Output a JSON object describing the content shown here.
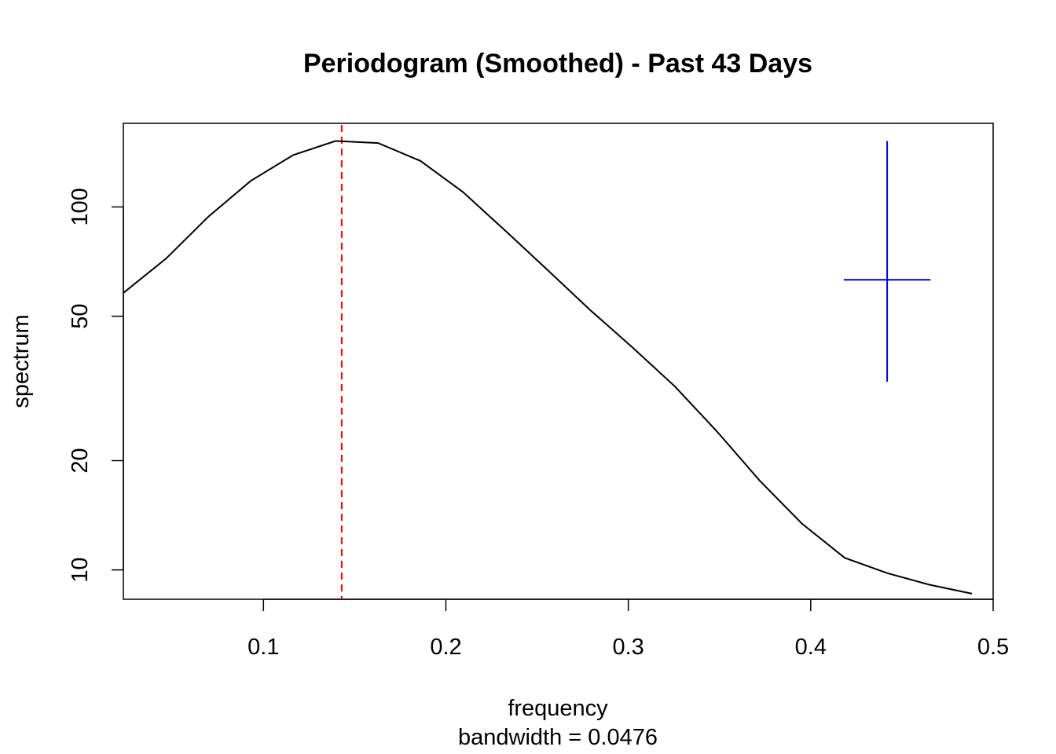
{
  "chart_data": {
    "type": "line",
    "title": "Periodogram (Smoothed) - Past 43 Days",
    "xlabel": "frequency",
    "sub": "bandwidth = 0.0476",
    "ylabel": "spectrum",
    "y_scale": "log",
    "xlim": [
      0.0232,
      0.5
    ],
    "ylim": [
      8.3,
      170
    ],
    "x_ticks": [
      0.1,
      0.2,
      0.3,
      0.4,
      0.5
    ],
    "x_tick_labels": [
      "0.1",
      "0.2",
      "0.3",
      "0.4",
      "0.5"
    ],
    "y_ticks": [
      10,
      20,
      50,
      100
    ],
    "y_tick_labels": [
      "10",
      "20",
      "50",
      "100"
    ],
    "grid": false,
    "series": [
      {
        "color": "#000000",
        "x": [
          0.0233,
          0.0465,
          0.0698,
          0.093,
          0.1163,
          0.1395,
          0.1628,
          0.186,
          0.2093,
          0.2326,
          0.2558,
          0.2791,
          0.3023,
          0.3256,
          0.3488,
          0.3721,
          0.3953,
          0.4186,
          0.4419,
          0.4651,
          0.4884
        ],
        "y": [
          58,
          72,
          94,
          118,
          139,
          152,
          150,
          134,
          110,
          86,
          67,
          52,
          41,
          32,
          24,
          17.6,
          13.4,
          10.8,
          9.8,
          9.1,
          8.6
        ]
      }
    ],
    "annotations": {
      "peak_frequency_line": {
        "x": 0.1429,
        "color": "#ff0000",
        "style": "dashed"
      },
      "confidence_cross": {
        "x": 0.4419,
        "y": 63,
        "y_low": 33,
        "y_high": 152,
        "x_halfwidth": 0.0238,
        "color": "#0000cd"
      }
    }
  }
}
